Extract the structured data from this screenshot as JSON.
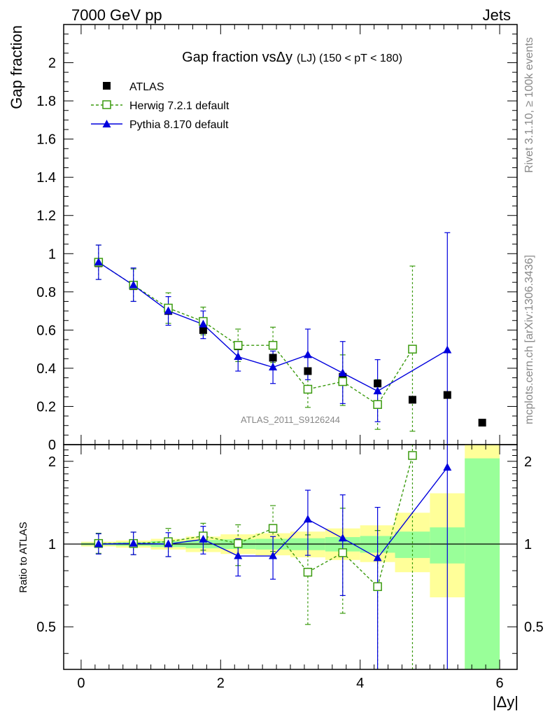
{
  "header": {
    "left": "7000 GeV pp",
    "right": "Jets"
  },
  "side_labels": {
    "top": "Rivet 3.1.10, ≥ 100k events",
    "bottom": "mcplots.cern.ch [arXiv:1306.3436]"
  },
  "chart_data": [
    {
      "type": "scatter",
      "panel": "main",
      "title_main": "Gap fraction vsΔy",
      "title_sub": "(LJ) (150 < pT < 180)",
      "ylabel": "Gap fraction",
      "xlim": [
        -0.25,
        6.25
      ],
      "ylim": [
        0,
        2.2
      ],
      "xticks": [
        0,
        2,
        4,
        6
      ],
      "yticks": [
        0,
        0.2,
        0.4,
        0.6,
        0.8,
        1,
        1.2,
        1.4,
        1.6,
        1.8,
        2
      ],
      "ytick_labels": [
        "0",
        "0.2",
        "0.4",
        "0.6",
        "0.8",
        "1",
        "1.2",
        "1.4",
        "1.6",
        "1.8",
        "2"
      ],
      "watermark": "ATLAS_2011_S9126244",
      "x": [
        0.25,
        0.75,
        1.25,
        1.75,
        2.25,
        2.75,
        3.25,
        3.75,
        4.25,
        4.75,
        5.25,
        5.75
      ],
      "series": [
        {
          "name": "ATLAS",
          "style": "data",
          "color": "#000000",
          "values": [
            0.95,
            0.83,
            0.7,
            0.6,
            0.515,
            0.455,
            0.385,
            0.355,
            0.32,
            0.235,
            0.26,
            0.115
          ]
        },
        {
          "name": "Herwig 7.2.1 default",
          "style": "open-square-dashed",
          "color": "#3a9a0e",
          "values": [
            0.955,
            0.835,
            0.715,
            0.645,
            0.52,
            0.52,
            0.29,
            0.33,
            0.21,
            0.5,
            null,
            null
          ],
          "err_lo": [
            0.09,
            0.085,
            0.08,
            0.07,
            0.085,
            0.09,
            0.095,
            0.125,
            0.13,
            0.43,
            null,
            null
          ],
          "err_hi": [
            0.09,
            0.085,
            0.08,
            0.075,
            0.085,
            0.095,
            0.095,
            0.14,
            0.13,
            0.435,
            null,
            null
          ]
        },
        {
          "name": "Pythia 8.170 default",
          "style": "filled-triangle-solid",
          "color": "#0000dd",
          "values": [
            0.955,
            0.835,
            0.7,
            0.63,
            0.46,
            0.405,
            0.47,
            0.375,
            0.28,
            null,
            0.495,
            null
          ],
          "err_lo": [
            0.09,
            0.085,
            0.075,
            0.075,
            0.075,
            0.085,
            0.13,
            0.16,
            0.16,
            null,
            0.6,
            null
          ],
          "err_hi": [
            0.09,
            0.09,
            0.075,
            0.07,
            0.075,
            0.085,
            0.135,
            0.165,
            0.165,
            null,
            0.615,
            null
          ]
        }
      ]
    },
    {
      "type": "scatter",
      "panel": "ratio",
      "ylabel": "Ratio to ATLAS",
      "xlabel": "|Δy|",
      "xlim": [
        -0.25,
        6.25
      ],
      "ylim": [
        0.35,
        2.3
      ],
      "xticks": [
        0,
        2,
        4,
        6
      ],
      "xtick_labels": [
        "0",
        "2",
        "4",
        "6"
      ],
      "yticks": [
        0.5,
        1,
        2
      ],
      "ytick_labels": [
        "0.5",
        "1",
        "2"
      ],
      "x": [
        0.25,
        0.75,
        1.25,
        1.75,
        2.25,
        2.75,
        3.25,
        3.75,
        4.25,
        4.75,
        5.25
      ],
      "bands": {
        "edges": [
          0,
          0.5,
          1,
          1.5,
          2,
          2.5,
          3,
          3.5,
          4,
          4.5,
          5,
          5.5,
          6
        ],
        "green_lo": [
          0.99,
          0.985,
          0.975,
          0.965,
          0.96,
          0.955,
          0.95,
          0.94,
          0.93,
          0.89,
          0.85,
          0.35
        ],
        "green_hi": [
          1.01,
          1.015,
          1.025,
          1.035,
          1.04,
          1.045,
          1.05,
          1.06,
          1.07,
          1.11,
          1.15,
          2.05
        ],
        "yellow_lo": [
          0.98,
          0.97,
          0.955,
          0.935,
          0.92,
          0.91,
          0.895,
          0.875,
          0.86,
          0.79,
          0.64,
          0.35
        ],
        "yellow_hi": [
          1.02,
          1.03,
          1.045,
          1.065,
          1.085,
          1.095,
          1.11,
          1.14,
          1.17,
          1.3,
          1.53,
          2.3
        ]
      },
      "series": [
        {
          "name": "Herwig 7.2.1 default",
          "color": "#3a9a0e",
          "values": [
            1.005,
            1.005,
            1.02,
            1.07,
            1.005,
            1.14,
            0.79,
            0.93,
            0.7,
            2.1,
            null
          ],
          "err_lo": [
            0.08,
            0.09,
            0.12,
            0.12,
            0.17,
            0.2,
            0.28,
            0.37,
            0.42,
            1.9,
            null
          ],
          "err_hi": [
            0.09,
            0.1,
            0.12,
            0.12,
            0.17,
            0.24,
            0.29,
            0.42,
            0.42,
            0.3,
            null
          ]
        },
        {
          "name": "Pythia 8.170 default",
          "color": "#0000dd",
          "values": [
            1.0,
            1.005,
            1.0,
            1.04,
            0.905,
            0.905,
            1.23,
            1.05,
            0.89,
            null,
            1.9
          ],
          "err_lo": [
            0.08,
            0.09,
            0.1,
            0.12,
            0.14,
            0.16,
            0.32,
            0.4,
            0.6,
            null,
            1.7
          ],
          "err_hi": [
            0.09,
            0.1,
            0.1,
            0.12,
            0.14,
            0.16,
            0.34,
            0.46,
            0.47,
            null,
            0.5
          ]
        }
      ]
    }
  ]
}
